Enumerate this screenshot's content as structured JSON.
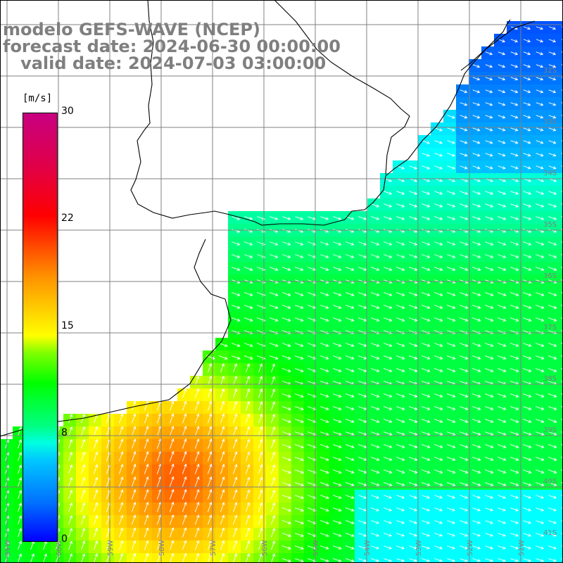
{
  "title": {
    "model_line": "modelo GEFS-WAVE (NCEP)",
    "forecast_line": "forecast date: 2024-06-30 00:00:00",
    "valid_line": "   valid date: 2024-07-03 03:00:00"
  },
  "colorbar": {
    "unit": "[m/s]",
    "ticks": [
      "30",
      "22",
      "15",
      "8",
      "0"
    ],
    "stops": [
      {
        "value": 0,
        "color": "#0000ff"
      },
      {
        "value": 8,
        "color": "#00ffff"
      },
      {
        "value": 15,
        "color": "#ffff00"
      },
      {
        "value": 22,
        "color": "#ff6000"
      },
      {
        "value": 30,
        "color": "#c80080"
      }
    ]
  },
  "map": {
    "lon_labels": [
      "61W",
      "60W",
      "59W",
      "58W",
      "57W",
      "56W",
      "55W",
      "54W",
      "53W",
      "52W",
      "51W"
    ],
    "lat_labels": [
      "32S",
      "33S",
      "34S",
      "35S",
      "36S",
      "37S",
      "38S",
      "39S",
      "40S",
      "41S"
    ],
    "arrow_color": "#ffffff",
    "grid_color": "#808080",
    "coast_color": "#000000"
  }
}
